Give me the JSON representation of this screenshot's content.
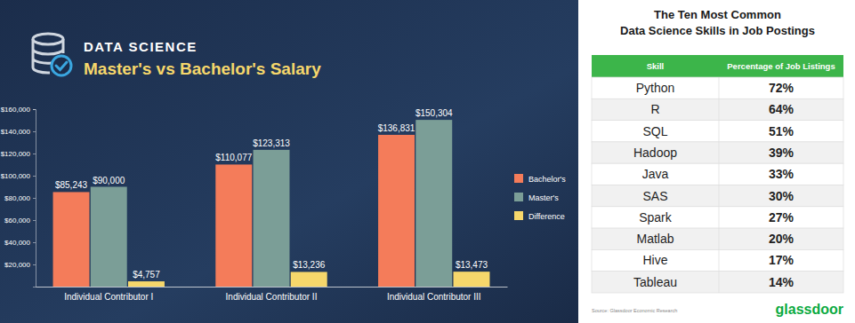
{
  "chart_data": {
    "type": "bar",
    "subtitle": "DATA SCIENCE",
    "title": "Master's vs Bachelor's Salary",
    "categories": [
      "Individual Contributor I",
      "Individual Contributor II",
      "Individual Contributor III"
    ],
    "series": [
      {
        "name": "Bachelor's",
        "color": "#f47c5a",
        "values": [
          85243,
          110077,
          136831
        ],
        "value_labels": [
          "$85,243",
          "$110,077",
          "$136,831"
        ]
      },
      {
        "name": "Master's",
        "color": "#7b9e97",
        "values": [
          90000,
          123313,
          150304
        ],
        "value_labels": [
          "$90,000",
          "$123,313",
          "$150,304"
        ]
      },
      {
        "name": "Difference",
        "color": "#f6d76b",
        "values": [
          4757,
          13236,
          13473
        ],
        "value_labels": [
          "$4,757",
          "$13,236",
          "$13,473"
        ]
      }
    ],
    "ylim": [
      0,
      160000
    ],
    "yticks": [
      {
        "value": 20000,
        "label": "$20,000"
      },
      {
        "value": 40000,
        "label": "$40,000"
      },
      {
        "value": 60000,
        "label": "$60,000"
      },
      {
        "value": 80000,
        "label": "$80,000"
      },
      {
        "value": 100000,
        "label": "$100,000"
      },
      {
        "value": 120000,
        "label": "$120,000"
      },
      {
        "value": 140000,
        "label": "$140,000"
      },
      {
        "value": 160000,
        "label": "$160,000"
      }
    ],
    "grid": false,
    "legend": "right",
    "data_labels": true
  },
  "table": {
    "title": [
      "The Ten Most Common",
      "Data Science Skills in Job Postings"
    ],
    "header": [
      "Skill",
      "Percentage of Job Listings"
    ],
    "rows": [
      [
        "Python",
        "72%"
      ],
      [
        "R",
        "64%"
      ],
      [
        "SQL",
        "51%"
      ],
      [
        "Hadoop",
        "39%"
      ],
      [
        "Java",
        "33%"
      ],
      [
        "SAS",
        "30%"
      ],
      [
        "Spark",
        "27%"
      ],
      [
        "Matlab",
        "20%"
      ],
      [
        "Hive",
        "17%"
      ],
      [
        "Tableau",
        "14%"
      ]
    ],
    "source": "Source: Glassdoor Economic Research",
    "logo": "glassdoor"
  }
}
